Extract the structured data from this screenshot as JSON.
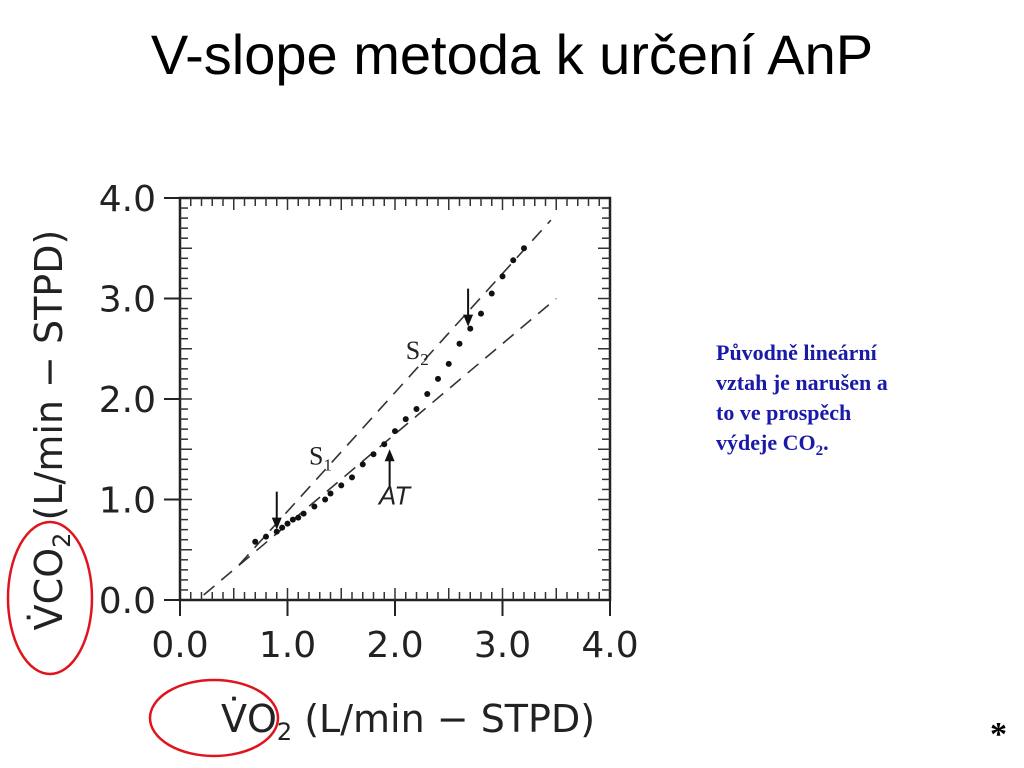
{
  "slide": {
    "title": "V-slope metoda k určení AnP",
    "note_lines": [
      "Původně lineární",
      "vztah je narušen a",
      "to ve prospěch",
      "výdeje CO"
    ],
    "note_sub": "2",
    "note_end": ".",
    "footer_mark": "*"
  },
  "chart_data": {
    "type": "scatter",
    "xlim": [
      0,
      4
    ],
    "ylim": [
      0,
      4
    ],
    "x_ticks": [
      "0.0",
      "1.0",
      "2.0",
      "3.0",
      "4.0"
    ],
    "y_ticks": [
      "0.0",
      "1.0",
      "2.0",
      "3.0",
      "4.0"
    ],
    "xlabel": {
      "symbol": "V̇O",
      "sub": "2",
      "units": "(L/min − STPD)"
    },
    "ylabel": {
      "symbol": "V̇CO",
      "sub": "2",
      "units": "(L/min − STPD)"
    },
    "series": [
      {
        "points": [
          [
            0.7,
            0.58
          ],
          [
            0.8,
            0.63
          ],
          [
            0.9,
            0.68
          ],
          [
            0.95,
            0.72
          ],
          [
            1.0,
            0.76
          ],
          [
            1.05,
            0.8
          ],
          [
            1.1,
            0.82
          ],
          [
            1.15,
            0.86
          ],
          [
            1.25,
            0.93
          ],
          [
            1.35,
            1.0
          ],
          [
            1.4,
            1.06
          ],
          [
            1.5,
            1.14
          ],
          [
            1.6,
            1.22
          ],
          [
            1.7,
            1.35
          ],
          [
            1.8,
            1.45
          ],
          [
            1.9,
            1.55
          ],
          [
            2.0,
            1.68
          ],
          [
            2.1,
            1.8
          ],
          [
            2.2,
            1.9
          ],
          [
            2.3,
            2.05
          ],
          [
            2.4,
            2.2
          ],
          [
            2.5,
            2.35
          ],
          [
            2.6,
            2.55
          ],
          [
            2.7,
            2.7
          ],
          [
            2.8,
            2.85
          ],
          [
            2.9,
            3.05
          ],
          [
            3.0,
            3.22
          ],
          [
            3.1,
            3.38
          ],
          [
            3.2,
            3.5
          ]
        ]
      }
    ],
    "fit_lines": [
      {
        "style": "dashed",
        "from": [
          0.22,
          0.05
        ],
        "to": [
          3.5,
          3.0
        ]
      },
      {
        "style": "dashed",
        "from": [
          0.55,
          0.35
        ],
        "to": [
          3.45,
          3.78
        ]
      }
    ],
    "annotations": [
      {
        "label": "S",
        "sub": "1",
        "x": 1.2,
        "y": 1.35
      },
      {
        "label": "S",
        "sub": "2",
        "x": 2.1,
        "y": 2.4
      },
      {
        "label": "AT",
        "x": 1.85,
        "y": 0.95
      }
    ],
    "arrows": [
      {
        "x": 0.9,
        "y_tip": 0.7,
        "direction": "down"
      },
      {
        "x": 2.68,
        "y_tip": 2.72,
        "direction": "down"
      },
      {
        "x": 1.95,
        "y_tip": 1.5,
        "direction": "up"
      }
    ],
    "highlight": {
      "color": "#e0141e"
    }
  }
}
